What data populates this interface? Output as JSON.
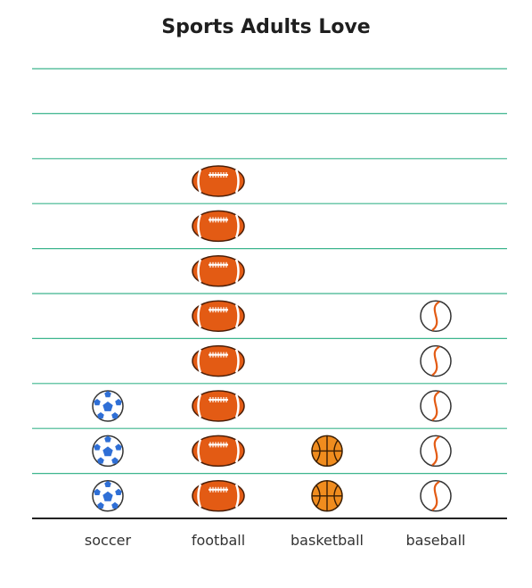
{
  "chart_data": {
    "type": "pictograph",
    "title": "Sports Adults Love",
    "categories": [
      "soccer",
      "football",
      "basketball",
      "baseball"
    ],
    "values": [
      3,
      8,
      2,
      5
    ],
    "icons": [
      "soccer-ball-icon",
      "football-icon",
      "basketball-icon",
      "baseball-icon"
    ],
    "max_rows": 10,
    "colors": {
      "gridline": "#3db58e",
      "baseline": "#222222",
      "football": "#e35b14",
      "basketball": "#f08c1e",
      "baseball_stitch": "#e35b14",
      "soccer": "#2f6fd6"
    }
  }
}
